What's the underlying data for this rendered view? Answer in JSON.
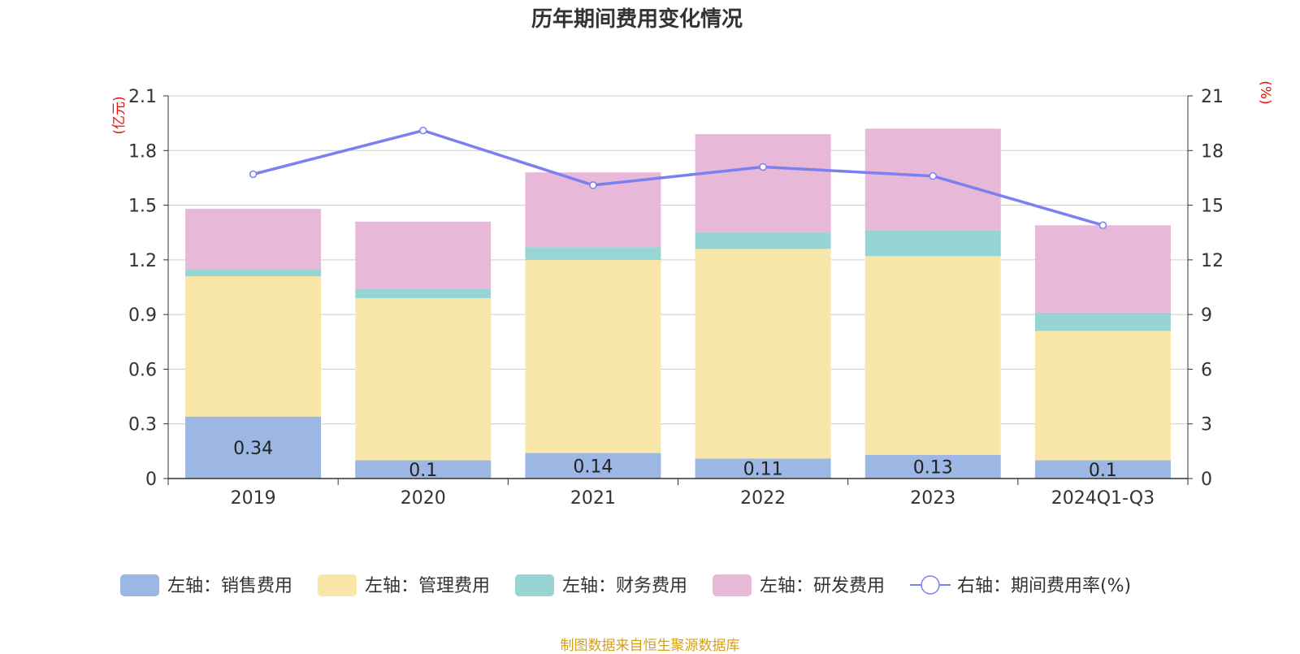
{
  "chart_data": {
    "type": "bar",
    "title": "历年期间费用变化情况",
    "categories": [
      "2019",
      "2020",
      "2021",
      "2022",
      "2023",
      "2024Q1-Q3"
    ],
    "left_axis": {
      "unit_label": "(亿元)",
      "ylim": [
        0,
        2.1
      ],
      "ticks": [
        "0",
        "0.3",
        "0.6",
        "0.9",
        "1.2",
        "1.5",
        "1.8",
        "2.1"
      ],
      "tick_values": [
        0,
        0.3,
        0.6,
        0.9,
        1.2,
        1.5,
        1.8,
        2.1
      ]
    },
    "right_axis": {
      "unit_label": "(%)",
      "ylim": [
        0,
        21
      ],
      "ticks": [
        "0",
        "3",
        "6",
        "9",
        "12",
        "15",
        "18",
        "21"
      ],
      "tick_values": [
        0,
        3,
        6,
        9,
        12,
        15,
        18,
        21
      ]
    },
    "series": [
      {
        "name": "左轴：销售费用",
        "type": "bar",
        "stack": "left",
        "color": "#9cb7e3",
        "values": [
          0.34,
          0.1,
          0.14,
          0.11,
          0.13,
          0.1
        ],
        "data_labels": [
          "0.34",
          "0.1",
          "0.14",
          "0.11",
          "0.13",
          "0.1"
        ]
      },
      {
        "name": "左轴：管理费用",
        "type": "bar",
        "stack": "left",
        "color": "#f8e7a8",
        "values": [
          0.77,
          0.89,
          1.06,
          1.15,
          1.09,
          0.71
        ]
      },
      {
        "name": "左轴：财务费用",
        "type": "bar",
        "stack": "left",
        "color": "#97d4d4",
        "values": [
          0.04,
          0.05,
          0.07,
          0.09,
          0.14,
          0.1
        ]
      },
      {
        "name": "左轴：研发费用",
        "type": "bar",
        "stack": "left",
        "color": "#e8b8d9",
        "values": [
          0.33,
          0.37,
          0.41,
          0.54,
          0.56,
          0.48
        ]
      },
      {
        "name": "右轴：期间费用率(%)",
        "type": "line",
        "axis": "right",
        "color": "#7b7ff0",
        "values": [
          16.7,
          19.1,
          16.1,
          17.1,
          16.6,
          13.9
        ]
      }
    ],
    "legend_position": "bottom",
    "grid": true
  },
  "footer": {
    "source": "制图数据来自恒生聚源数据库"
  }
}
